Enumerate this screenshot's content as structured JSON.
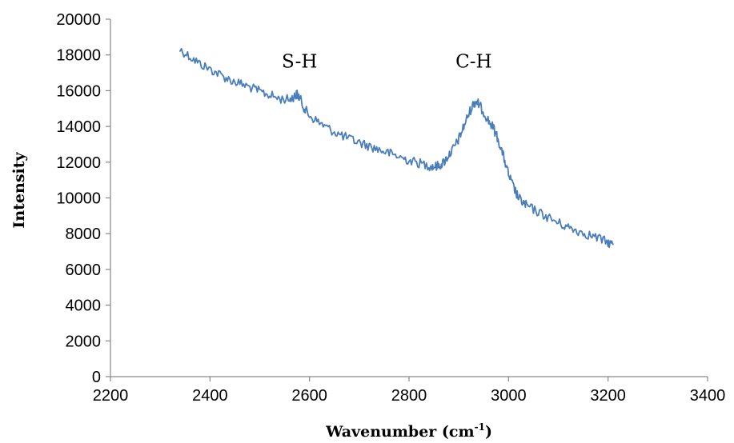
{
  "chart_data": {
    "type": "line",
    "title": "",
    "xlabel_main": "Wavenumber (cm",
    "xlabel_sup": "-1",
    "xlabel_close": ")",
    "ylabel": "Intensity",
    "xlim": [
      2200,
      3400
    ],
    "ylim": [
      0,
      20000
    ],
    "x_ticks": [
      2200,
      2400,
      2600,
      2800,
      3000,
      3200,
      3400
    ],
    "y_ticks": [
      0,
      2000,
      4000,
      6000,
      8000,
      10000,
      12000,
      14000,
      16000,
      18000,
      20000
    ],
    "grid": false,
    "legend": "none",
    "series_color": "#4a7ebb",
    "axis_color": "#878787",
    "series": [
      {
        "x": [
          2340,
          2360,
          2380,
          2400,
          2420,
          2440,
          2460,
          2480,
          2500,
          2520,
          2540,
          2560,
          2570,
          2575,
          2580,
          2590,
          2600,
          2620,
          2640,
          2660,
          2680,
          2700,
          2720,
          2740,
          2760,
          2780,
          2800,
          2820,
          2840,
          2850,
          2860,
          2870,
          2880,
          2890,
          2900,
          2910,
          2920,
          2930,
          2935,
          2940,
          2950,
          2960,
          2970,
          2980,
          2990,
          3000,
          3010,
          3020,
          3030,
          3040,
          3060,
          3080,
          3100,
          3120,
          3140,
          3160,
          3180,
          3200,
          3210
        ],
        "y": [
          18300,
          17900,
          17500,
          17200,
          16900,
          16600,
          16400,
          16200,
          15950,
          15750,
          15550,
          15500,
          15700,
          15800,
          15600,
          15000,
          14600,
          14200,
          13850,
          13550,
          13300,
          13100,
          12900,
          12700,
          12500,
          12300,
          12100,
          11950,
          11800,
          11750,
          11800,
          12000,
          12400,
          12800,
          13300,
          14000,
          14700,
          15300,
          15400,
          15250,
          14800,
          14300,
          13900,
          13200,
          12300,
          11300,
          10600,
          10000,
          9700,
          9500,
          9200,
          8900,
          8600,
          8350,
          8150,
          7950,
          7750,
          7500,
          7400
        ]
      }
    ],
    "annotations": [
      {
        "text": "S-H",
        "x": 2580,
        "y": 17300
      },
      {
        "text": "C-H",
        "x": 2930,
        "y": 17300
      }
    ]
  }
}
